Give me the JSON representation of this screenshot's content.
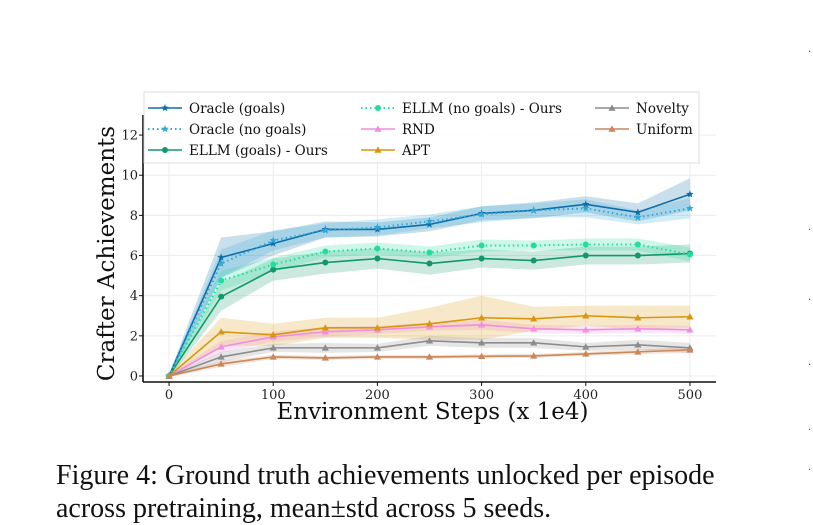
{
  "chart_data": {
    "type": "line",
    "xlabel": "Environment Steps (x 1e4)",
    "ylabel": "Crafter Achievements",
    "x": [
      0,
      50,
      100,
      150,
      200,
      250,
      300,
      350,
      400,
      450,
      500
    ],
    "xticks": [
      0,
      100,
      200,
      300,
      400,
      500
    ],
    "yticks": [
      0,
      2,
      4,
      6,
      8,
      10,
      12
    ],
    "xlim": [
      -25,
      525
    ],
    "ylim": [
      -0.3,
      13.0
    ],
    "grid": true,
    "legend_position": "top",
    "series": [
      {
        "name": "Oracle (goals)",
        "color": "#0e6ea8",
        "style": "solid",
        "marker": "star",
        "values": [
          0,
          5.9,
          6.6,
          7.3,
          7.3,
          7.55,
          8.1,
          8.25,
          8.55,
          8.15,
          9.05
        ],
        "std": [
          0.1,
          1.0,
          0.6,
          0.4,
          0.35,
          0.35,
          0.35,
          0.4,
          0.4,
          0.45,
          0.8
        ]
      },
      {
        "name": "Oracle (no goals)",
        "color": "#2ea8d8",
        "style": "dotted",
        "marker": "star",
        "values": [
          0,
          5.6,
          6.75,
          7.25,
          7.4,
          7.7,
          8.05,
          8.25,
          8.35,
          7.9,
          8.35
        ],
        "std": [
          0.1,
          0.7,
          0.5,
          0.35,
          0.4,
          0.35,
          0.4,
          0.35,
          0.45,
          0.35,
          0.5
        ]
      },
      {
        "name": "ELLM (goals) - Ours",
        "color": "#109a6a",
        "style": "solid",
        "marker": "circle",
        "values": [
          0,
          3.95,
          5.3,
          5.65,
          5.85,
          5.6,
          5.85,
          5.75,
          6.0,
          6.0,
          6.1
        ],
        "std": [
          0.1,
          0.7,
          0.55,
          0.55,
          0.5,
          0.55,
          0.45,
          0.45,
          0.45,
          0.45,
          0.45
        ]
      },
      {
        "name": "ELLM (no goals) - Ours",
        "color": "#22dca0",
        "style": "dotted",
        "marker": "circle",
        "values": [
          0,
          4.75,
          5.55,
          6.2,
          6.35,
          6.15,
          6.5,
          6.5,
          6.55,
          6.55,
          6.05
        ],
        "std": [
          0.1,
          0.5,
          0.35,
          0.3,
          0.3,
          0.3,
          0.3,
          0.25,
          0.3,
          0.3,
          0.35
        ]
      },
      {
        "name": "RND",
        "color": "#f28ee0",
        "style": "solid",
        "marker": "triangle",
        "values": [
          0,
          1.45,
          1.95,
          2.2,
          2.3,
          2.45,
          2.55,
          2.35,
          2.3,
          2.35,
          2.3
        ],
        "std": [
          0.05,
          0.3,
          0.25,
          0.25,
          0.2,
          0.2,
          0.25,
          0.2,
          0.2,
          0.2,
          0.2
        ]
      },
      {
        "name": "APT",
        "color": "#d9960f",
        "style": "solid",
        "marker": "triangle",
        "values": [
          0,
          2.2,
          2.05,
          2.4,
          2.4,
          2.6,
          2.9,
          2.85,
          3.0,
          2.9,
          2.95
        ],
        "std": [
          0.1,
          0.7,
          0.55,
          0.5,
          0.5,
          0.8,
          1.1,
          0.6,
          0.5,
          0.6,
          0.55
        ]
      },
      {
        "name": "Novelty",
        "color": "#8c8c8c",
        "style": "solid",
        "marker": "triangle",
        "values": [
          0,
          0.95,
          1.4,
          1.4,
          1.4,
          1.75,
          1.65,
          1.65,
          1.45,
          1.55,
          1.4
        ],
        "std": [
          0.05,
          0.25,
          0.2,
          0.25,
          0.2,
          0.25,
          0.25,
          0.25,
          0.2,
          0.25,
          0.25
        ]
      },
      {
        "name": "Uniform",
        "color": "#c9875a",
        "style": "solid",
        "marker": "triangle",
        "values": [
          0,
          0.6,
          0.95,
          0.9,
          0.95,
          0.95,
          0.98,
          1.0,
          1.1,
          1.2,
          1.3
        ],
        "std": [
          0.05,
          0.15,
          0.1,
          0.1,
          0.1,
          0.1,
          0.1,
          0.1,
          0.1,
          0.12,
          0.15
        ]
      }
    ]
  },
  "caption": "Figure 4: Ground truth achievements unlocked per episode\nacross pretraining, mean±std across 5 seeds.",
  "edge_marks": [
    ".",
    ".",
    ".",
    ".",
    ".",
    "."
  ]
}
